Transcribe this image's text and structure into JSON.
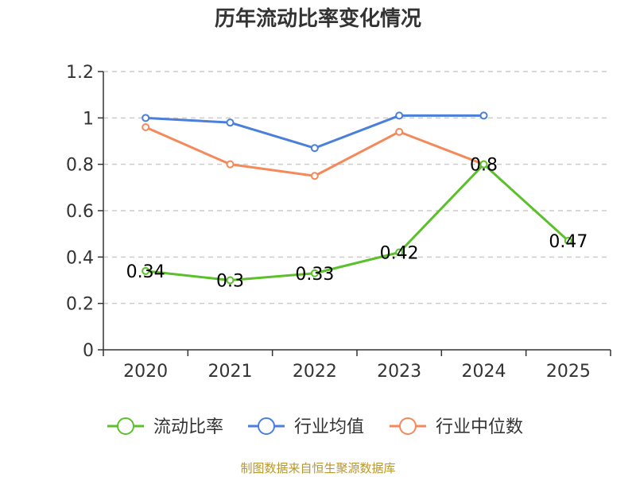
{
  "chart_data": {
    "type": "line",
    "title": "历年流动比率变化情况",
    "categories": [
      "2020",
      "2021",
      "2022",
      "2023",
      "2024",
      "2025"
    ],
    "ylim": [
      0,
      1.2
    ],
    "yticks": [
      "0",
      "0.2",
      "0.4",
      "0.6",
      "0.8",
      "1",
      "1.2"
    ],
    "grid": true,
    "legend_position": "bottom",
    "series": [
      {
        "name": "流动比率",
        "color": "#5cc02d",
        "values": [
          0.34,
          0.3,
          0.33,
          0.42,
          0.8,
          0.47
        ],
        "labels": [
          "0.34",
          "0.3",
          "0.33",
          "0.42",
          "0.8",
          "0.47"
        ]
      },
      {
        "name": "行业均值",
        "color": "#4a7fdc",
        "values": [
          1.0,
          0.98,
          0.87,
          1.01,
          1.01,
          null
        ]
      },
      {
        "name": "行业中位数",
        "color": "#f5895a",
        "values": [
          0.96,
          0.8,
          0.75,
          0.94,
          0.8,
          null
        ]
      }
    ]
  },
  "footer": {
    "source": "制图数据来自恒生聚源数据库"
  }
}
